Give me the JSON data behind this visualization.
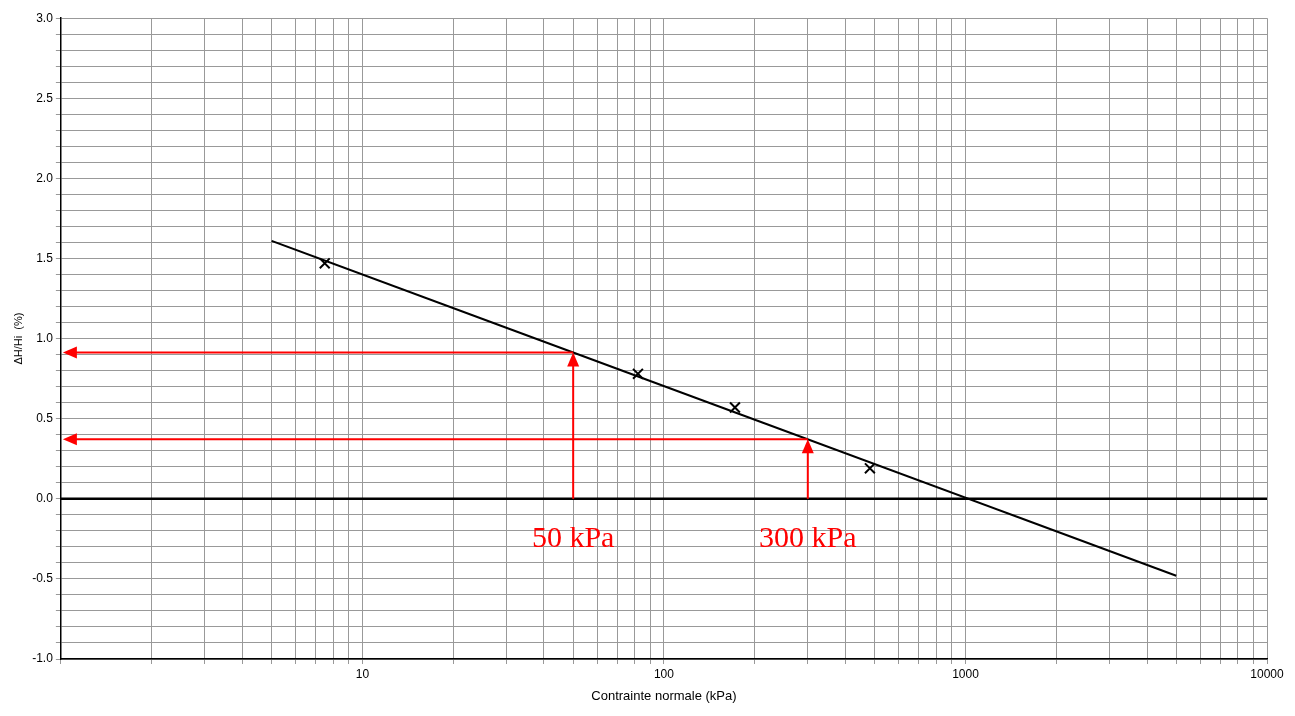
{
  "chart_data": {
    "type": "scatter",
    "xlabel": "Contrainte normale (kPa)",
    "ylabel": "ΔH/Hi  (%)",
    "log": "x",
    "xlim": [
      1,
      10000
    ],
    "xticks": [
      {
        "value": 1,
        "label": null
      },
      {
        "value": 2,
        "label": null
      },
      {
        "value": 3,
        "label": null
      },
      {
        "value": 4,
        "label": null
      },
      {
        "value": 5,
        "label": null
      },
      {
        "value": 6,
        "label": null
      },
      {
        "value": 7,
        "label": null
      },
      {
        "value": 8,
        "label": null
      },
      {
        "value": 9,
        "label": null
      },
      10,
      {
        "value": 20,
        "label": null
      },
      {
        "value": 30,
        "label": null
      },
      {
        "value": 40,
        "label": null
      },
      {
        "value": 50,
        "label": null
      },
      {
        "value": 60,
        "label": null
      },
      {
        "value": 70,
        "label": null
      },
      {
        "value": 80,
        "label": null
      },
      {
        "value": 90,
        "label": null
      },
      100,
      {
        "value": 200,
        "label": null
      },
      {
        "value": 300,
        "label": null
      },
      {
        "value": 400,
        "label": null
      },
      {
        "value": 500,
        "label": null
      },
      {
        "value": 600,
        "label": null
      },
      {
        "value": 700,
        "label": null
      },
      {
        "value": 800,
        "label": null
      },
      {
        "value": 900,
        "label": null
      },
      1000,
      {
        "value": 2000,
        "label": null
      },
      {
        "value": 3000,
        "label": null
      },
      {
        "value": 4000,
        "label": null
      },
      {
        "value": 5000,
        "label": null
      },
      {
        "value": 6000,
        "label": null
      },
      {
        "value": 7000,
        "label": null
      },
      {
        "value": 8000,
        "label": null
      },
      {
        "value": 9000,
        "label": null
      },
      10000
    ],
    "ylim": [
      -1,
      3
    ],
    "yticks": [
      {
        "value": -1,
        "label": "-1.0"
      },
      {
        "value": -0.9,
        "label": null
      },
      {
        "value": -0.8,
        "label": null
      },
      {
        "value": -0.7,
        "label": null
      },
      {
        "value": -0.6,
        "label": null
      },
      {
        "value": -0.5,
        "label": "-0.5"
      },
      {
        "value": -0.4,
        "label": null
      },
      {
        "value": -0.3,
        "label": null
      },
      {
        "value": -0.2,
        "label": null
      },
      {
        "value": -0.1,
        "label": null
      },
      {
        "value": 0,
        "label": "0.0"
      },
      {
        "value": 0.1,
        "label": null
      },
      {
        "value": 0.2,
        "label": null
      },
      {
        "value": 0.3,
        "label": null
      },
      {
        "value": 0.4,
        "label": null
      },
      {
        "value": 0.5,
        "label": "0.5"
      },
      {
        "value": 0.6,
        "label": null
      },
      {
        "value": 0.7,
        "label": null
      },
      {
        "value": 0.8,
        "label": null
      },
      {
        "value": 0.9,
        "label": null
      },
      {
        "value": 1,
        "label": "1.0"
      },
      {
        "value": 1.1,
        "label": null
      },
      {
        "value": 1.2,
        "label": null
      },
      {
        "value": 1.3,
        "label": null
      },
      {
        "value": 1.4,
        "label": null
      },
      {
        "value": 1.5,
        "label": "1.5"
      },
      {
        "value": 1.6,
        "label": null
      },
      {
        "value": 1.7,
        "label": null
      },
      {
        "value": 1.8,
        "label": null
      },
      {
        "value": 1.9,
        "label": null
      },
      {
        "value": 2,
        "label": "2.0"
      },
      {
        "value": 2.1,
        "label": null
      },
      {
        "value": 2.2,
        "label": null
      },
      {
        "value": 2.3,
        "label": null
      },
      {
        "value": 2.4,
        "label": null
      },
      {
        "value": 2.5,
        "label": "2.5"
      },
      {
        "value": 2.6,
        "label": null
      },
      {
        "value": 2.7,
        "label": null
      },
      {
        "value": 2.8,
        "label": null
      },
      {
        "value": 2.9,
        "label": null
      },
      {
        "value": 3,
        "label": "3.0"
      }
    ],
    "grid": true,
    "legend": false,
    "marker": "cross",
    "series": [
      {
        "type": "scatter",
        "color": "#000000",
        "x": [
          7.5,
          82,
          172,
          482
        ],
        "values": [
          1.47,
          0.78,
          0.57,
          0.19
        ]
      },
      {
        "type": "line",
        "color": "#000000",
        "x": [
          5,
          5000
        ],
        "values": [
          1.61,
          -0.48
        ],
        "marker": "none"
      }
    ],
    "ref_lines": [
      {
        "axis": "y",
        "value": 0,
        "color": "#000000"
      },
      {
        "axis": "x",
        "value": 50,
        "label": "50 kPa",
        "color": "#ff0000"
      },
      {
        "axis": "x",
        "value": 300,
        "label": "300 kPa",
        "color": "#ff0000"
      }
    ]
  }
}
